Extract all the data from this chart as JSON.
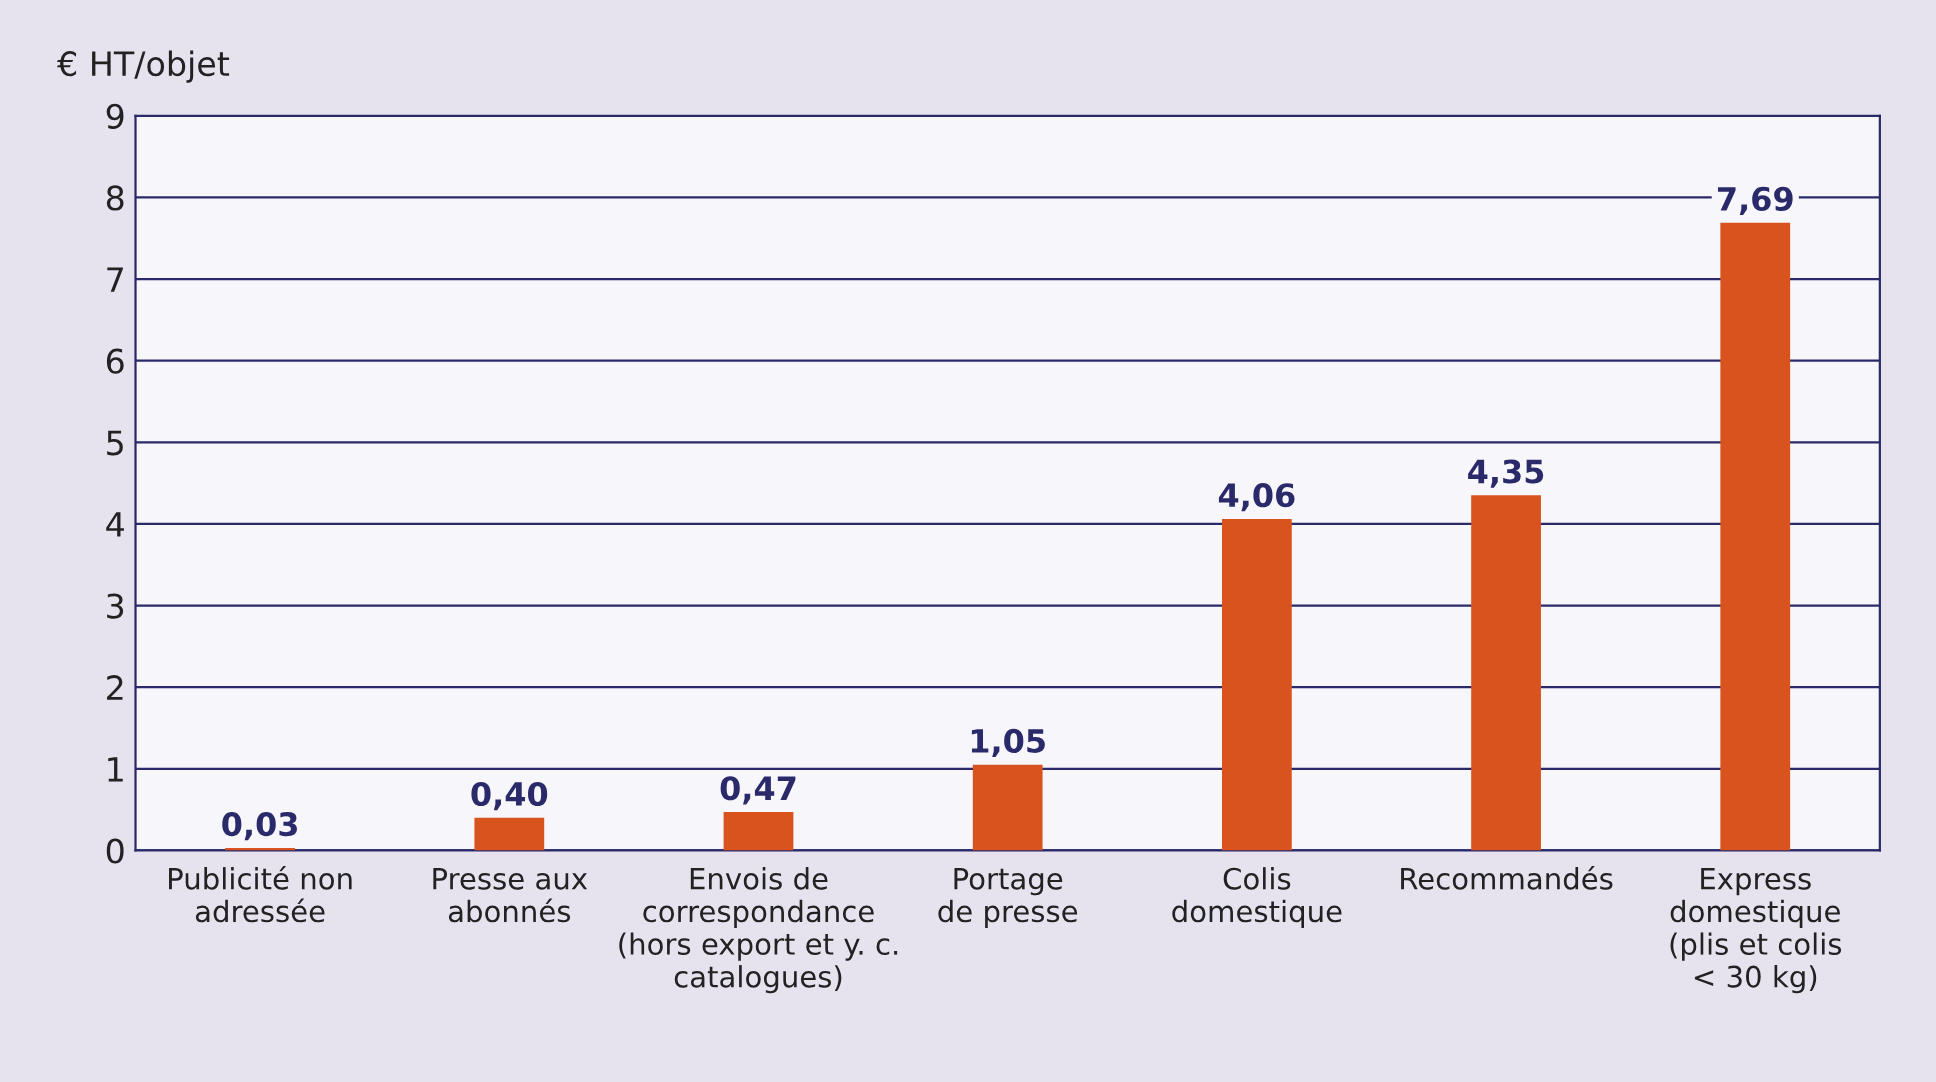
{
  "chart_data": {
    "type": "bar",
    "ylabel": "€ HT/objet",
    "categories": [
      "Publicité non\nadressée",
      "Presse aux\nabonnés",
      "Envois de\ncorrespondance\n(hors export et y. c.\ncatalogues)",
      "Portage\nde presse",
      "Colis\ndomestique",
      "Recommandés",
      "Express\ndomestique\n(plis et colis\n< 30 kg)"
    ],
    "values": [
      0.03,
      0.4,
      0.47,
      1.05,
      4.06,
      4.35,
      7.69
    ],
    "value_labels": [
      "0,03",
      "0,40",
      "0,47",
      "1,05",
      "4,06",
      "4,35",
      "7,69"
    ],
    "color": "#d9531e",
    "ylim": [
      0,
      9
    ],
    "yticks": [
      0,
      1,
      2,
      3,
      4,
      5,
      6,
      7,
      8,
      9
    ],
    "grid": "y",
    "legend": false
  }
}
